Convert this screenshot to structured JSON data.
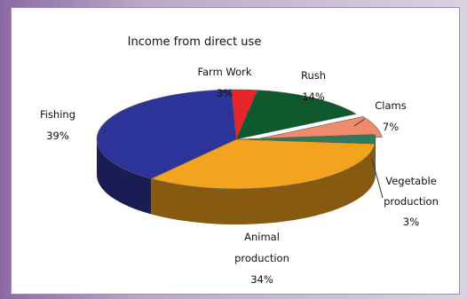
{
  "chart_data": {
    "type": "pie",
    "title": "Income from direct use",
    "slices": [
      {
        "label": "Farm Work",
        "value": 3,
        "value_label": "3%",
        "color": "#e8262a"
      },
      {
        "label": "Rush",
        "value": 14,
        "value_label": "14%",
        "color": "#0e5a2c"
      },
      {
        "label": "Clams",
        "value": 7,
        "value_label": "7%",
        "color": "#f08a6c"
      },
      {
        "label": "Vegetable production",
        "value": 3,
        "value_label": "3%",
        "color": "#2f7a5a"
      },
      {
        "label": "Animal production",
        "value": 34,
        "value_label": "34%",
        "color": "#f3a31d"
      },
      {
        "label": "Fishing",
        "value": 39,
        "value_label": "39%",
        "color": "#2d3499"
      }
    ],
    "label_lines": {
      "farm_work": [
        "Farm Work",
        "3%"
      ],
      "rush": [
        "Rush",
        "14%"
      ],
      "clams": [
        "Clams",
        "7%"
      ],
      "vegetable": [
        "Vegetable",
        "production",
        "3%"
      ],
      "animal": [
        "Animal",
        "production",
        "34%"
      ],
      "fishing": [
        "Fishing",
        "39%"
      ]
    },
    "legend": "none",
    "style": "3d exploded pie"
  }
}
